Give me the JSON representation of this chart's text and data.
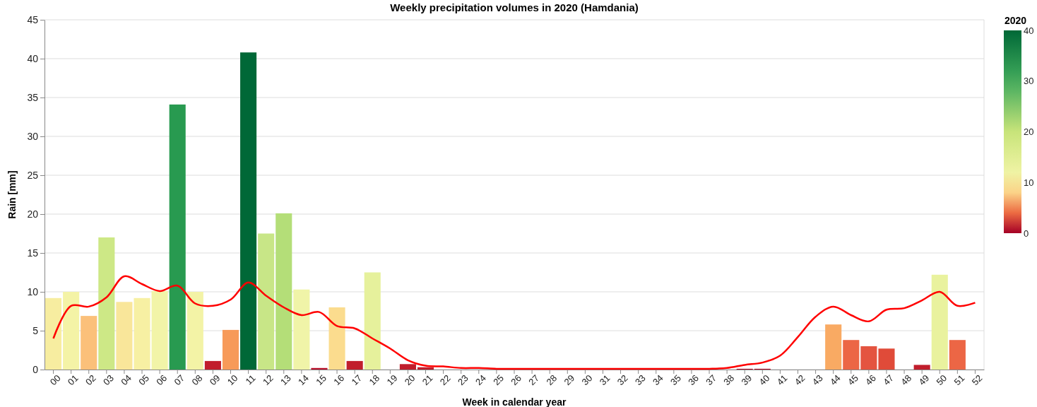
{
  "chart_data": {
    "type": "bar",
    "title": "Weekly precipitation volumes in 2020 (Hamdania)",
    "xlabel": "Week in calendar year",
    "ylabel": "Rain [mm]",
    "clabel": "2020",
    "categories": [
      "00",
      "01",
      "02",
      "03",
      "04",
      "05",
      "06",
      "07",
      "08",
      "09",
      "10",
      "11",
      "12",
      "13",
      "14",
      "15",
      "16",
      "17",
      "18",
      "19",
      "20",
      "21",
      "22",
      "23",
      "24",
      "25",
      "26",
      "27",
      "28",
      "29",
      "30",
      "31",
      "32",
      "33",
      "34",
      "35",
      "36",
      "37",
      "38",
      "39",
      "40",
      "41",
      "42",
      "43",
      "44",
      "45",
      "46",
      "47",
      "48",
      "49",
      "50",
      "51",
      "52"
    ],
    "series": [
      {
        "values": [
          9.2,
          10,
          6.9,
          17,
          8.7,
          9.2,
          10.1,
          34.1,
          10,
          1.1,
          5.1,
          40.8,
          17.5,
          20.1,
          10.3,
          0.2,
          8,
          1.1,
          12.5,
          0,
          0.7,
          0.3,
          0,
          0,
          0,
          0,
          0,
          0,
          0,
          0,
          0,
          0,
          0,
          0,
          0,
          0,
          0,
          0,
          0,
          0.1,
          0.1,
          0,
          0,
          0,
          5.8,
          3.8,
          3,
          2.7,
          0,
          0.6,
          12.2,
          3.8,
          null
        ],
        "colors": [
          "#f7eda0",
          "#f4f3a6",
          "#fbc07a",
          "#cde886",
          "#f9e69a",
          "#f7f0a3",
          "#f2f4a8",
          "#289a50",
          "#f3f3a6",
          "#c11e2c",
          "#f79a59",
          "#006837",
          "#c8e687",
          "#b4de78",
          "#f0f4a8",
          "#b8102a",
          "#fbdc8e",
          "#c11e2c",
          "#e6f19c",
          "#a50026",
          "#c11e2c",
          "#c11e2c",
          "#a50026",
          "#a50026",
          "#a50026",
          "#a50026",
          "#a50026",
          "#a50026",
          "#a50026",
          "#a50026",
          "#a50026",
          "#a50026",
          "#a50026",
          "#a50026",
          "#a50026",
          "#a50026",
          "#a50026",
          "#a50026",
          "#a50026",
          "#b00d28",
          "#b00d28",
          "#a50026",
          "#a50026",
          "#a50026",
          "#f9aa63",
          "#ec6645",
          "#e45440",
          "#e04b39",
          "#a50026",
          "#c11e2c",
          "#e9f29e",
          "#ec6645",
          null
        ]
      },
      {
        "type": "line",
        "color": "#ff0000",
        "values": [
          4,
          8.2,
          8.1,
          9.3,
          12,
          11,
          10.1,
          10.8,
          8.5,
          8.2,
          9,
          11.2,
          9.5,
          8,
          7,
          7.4,
          5.6,
          5.3,
          4,
          2.7,
          1.2,
          0.5,
          0.4,
          0.2,
          0.2,
          0.1,
          0.1,
          0.1,
          0.1,
          0.1,
          0.1,
          0.1,
          0.1,
          0.1,
          0.1,
          0.1,
          0.1,
          0.1,
          0.2,
          0.6,
          0.9,
          1.8,
          4.2,
          6.8,
          8.1,
          7,
          6.2,
          7.7,
          7.9,
          8.9,
          10,
          8.2,
          8.6
        ]
      }
    ],
    "ylim": [
      0,
      45
    ],
    "yticks": [
      0,
      5,
      10,
      15,
      20,
      25,
      30,
      35,
      40,
      45
    ],
    "grid": "y",
    "clim": [
      0,
      40
    ],
    "cticks": [
      0,
      10,
      20,
      30,
      40
    ]
  }
}
